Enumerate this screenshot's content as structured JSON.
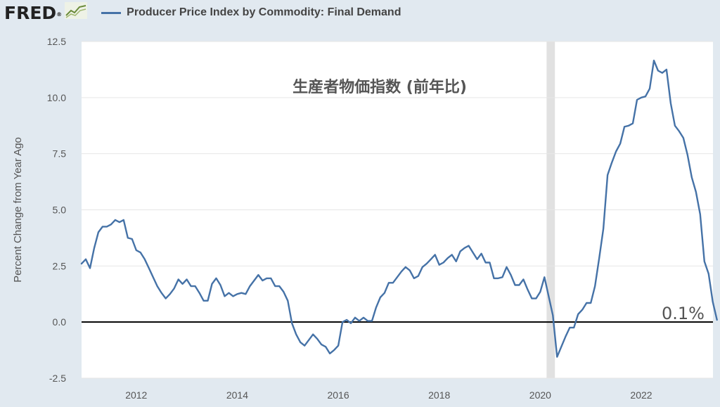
{
  "header": {
    "logo_text": "FRED",
    "logo_mark": "®"
  },
  "legend": {
    "series_label": "Producer Price Index by Commodity: Final Demand"
  },
  "annotations": {
    "jp_title": "生産者物価指数 (前年比)",
    "last_value": "0.1%"
  },
  "colors": {
    "background": "#e1e9f0",
    "plot_bg": "#ffffff",
    "series": "#4572a7",
    "recession": "#e1e1e1",
    "zero_line": "#000000"
  },
  "chart_data": {
    "type": "line",
    "title": "Producer Price Index by Commodity: Final Demand",
    "xlabel": "",
    "ylabel": "Percent Change from Year Ago",
    "xlim": [
      2010.917,
      2023.42
    ],
    "ylim": [
      -2.5,
      12.5
    ],
    "yticks": [
      -2.5,
      0.0,
      2.5,
      5.0,
      7.5,
      10.0,
      12.5
    ],
    "ytick_labels": [
      "-2.5",
      "0.0",
      "2.5",
      "5.0",
      "7.5",
      "10.0",
      "12.5"
    ],
    "xticks": [
      2012,
      2014,
      2016,
      2018,
      2020,
      2022
    ],
    "xtick_labels": [
      "2012",
      "2014",
      "2016",
      "2018",
      "2020",
      "2022"
    ],
    "grid": "horizontal",
    "recession_shading": [
      {
        "start": 2020.125,
        "end": 2020.29
      }
    ],
    "zero_line": 0,
    "series": [
      {
        "name": "Producer Price Index by Commodity: Final Demand",
        "start": 2010.917,
        "step_years": 0.08333,
        "values": [
          2.6,
          2.8,
          2.4,
          3.3,
          4.0,
          4.25,
          4.25,
          4.35,
          4.55,
          4.45,
          4.55,
          3.75,
          3.7,
          3.2,
          3.1,
          2.8,
          2.4,
          2.0,
          1.6,
          1.3,
          1.05,
          1.25,
          1.5,
          1.9,
          1.7,
          1.9,
          1.6,
          1.6,
          1.3,
          0.95,
          0.95,
          1.7,
          1.95,
          1.65,
          1.15,
          1.3,
          1.15,
          1.25,
          1.3,
          1.25,
          1.6,
          1.85,
          2.1,
          1.85,
          1.95,
          1.95,
          1.6,
          1.6,
          1.35,
          0.95,
          -0.05,
          -0.55,
          -0.9,
          -1.05,
          -0.8,
          -0.55,
          -0.75,
          -1.0,
          -1.1,
          -1.4,
          -1.25,
          -1.05,
          0.0,
          0.1,
          -0.05,
          0.2,
          0.05,
          0.2,
          0.05,
          0.05,
          0.65,
          1.1,
          1.3,
          1.75,
          1.75,
          2.0,
          2.25,
          2.45,
          2.3,
          1.95,
          2.05,
          2.45,
          2.6,
          2.8,
          3.0,
          2.55,
          2.65,
          2.85,
          3.0,
          2.7,
          3.15,
          3.3,
          3.4,
          3.1,
          2.8,
          3.05,
          2.65,
          2.65,
          1.95,
          1.95,
          2.0,
          2.45,
          2.1,
          1.65,
          1.65,
          1.9,
          1.45,
          1.05,
          1.05,
          1.35,
          2.0,
          1.15,
          0.3,
          -1.55,
          -1.1,
          -0.65,
          -0.25,
          -0.25,
          0.35,
          0.55,
          0.85,
          0.85,
          1.6,
          2.85,
          4.15,
          6.55,
          7.1,
          7.6,
          7.95,
          8.7,
          8.75,
          8.85,
          9.9,
          10.0,
          10.05,
          10.4,
          11.65,
          11.2,
          11.1,
          11.25,
          9.75,
          8.75,
          8.5,
          8.2,
          7.45,
          6.45,
          5.8,
          4.8,
          2.7,
          2.15,
          0.9,
          0.1
        ]
      }
    ]
  }
}
